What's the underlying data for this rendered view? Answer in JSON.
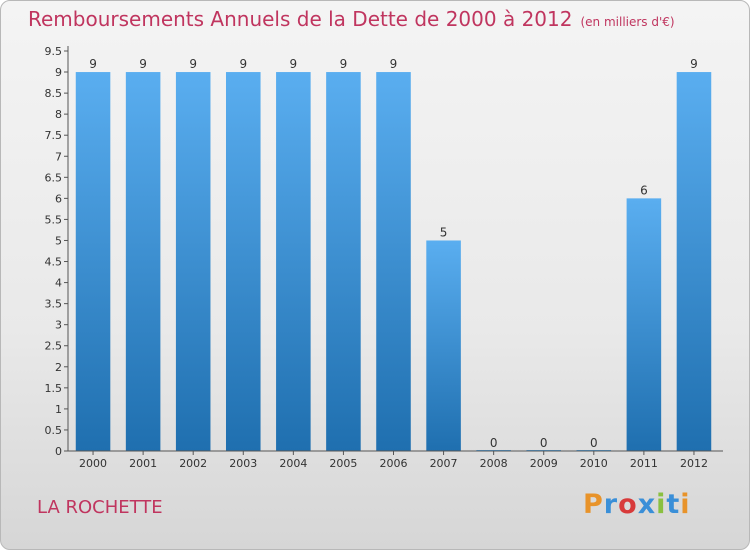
{
  "header": {
    "title": "Remboursements Annuels de la Dette de 2000 à 2012",
    "unit": "(en milliers d'€)"
  },
  "footer": {
    "commune": "LA ROCHETTE",
    "logo_text": "Proxiti"
  },
  "colors": {
    "bar": "#4a9de0",
    "bar_dark": "#2070b0",
    "title": "#c0355f",
    "logo": [
      "#e8932a",
      "#3a8fd8",
      "#d83a3a",
      "#3a8fd8",
      "#8ac040",
      "#3a8fd8",
      "#e8932a"
    ]
  },
  "chart_data": {
    "type": "bar",
    "categories": [
      "2000",
      "2001",
      "2002",
      "2003",
      "2004",
      "2005",
      "2006",
      "2007",
      "2008",
      "2009",
      "2010",
      "2011",
      "2012"
    ],
    "values": [
      9,
      9,
      9,
      9,
      9,
      9,
      9,
      5,
      0,
      0,
      0,
      6,
      9
    ],
    "data_labels": [
      "9",
      "9",
      "9",
      "9",
      "9",
      "9",
      "9",
      "5",
      "0",
      "0",
      "0",
      "6",
      "9"
    ],
    "yticks": [
      "0",
      "0.5",
      "1",
      "1.5",
      "2",
      "2.5",
      "3",
      "3.5",
      "4",
      "4.5",
      "5",
      "5.5",
      "6",
      "6.5",
      "7",
      "7.5",
      "8",
      "8.5",
      "9",
      "9.5"
    ],
    "ylim": [
      0,
      9.5
    ],
    "grid": false
  }
}
